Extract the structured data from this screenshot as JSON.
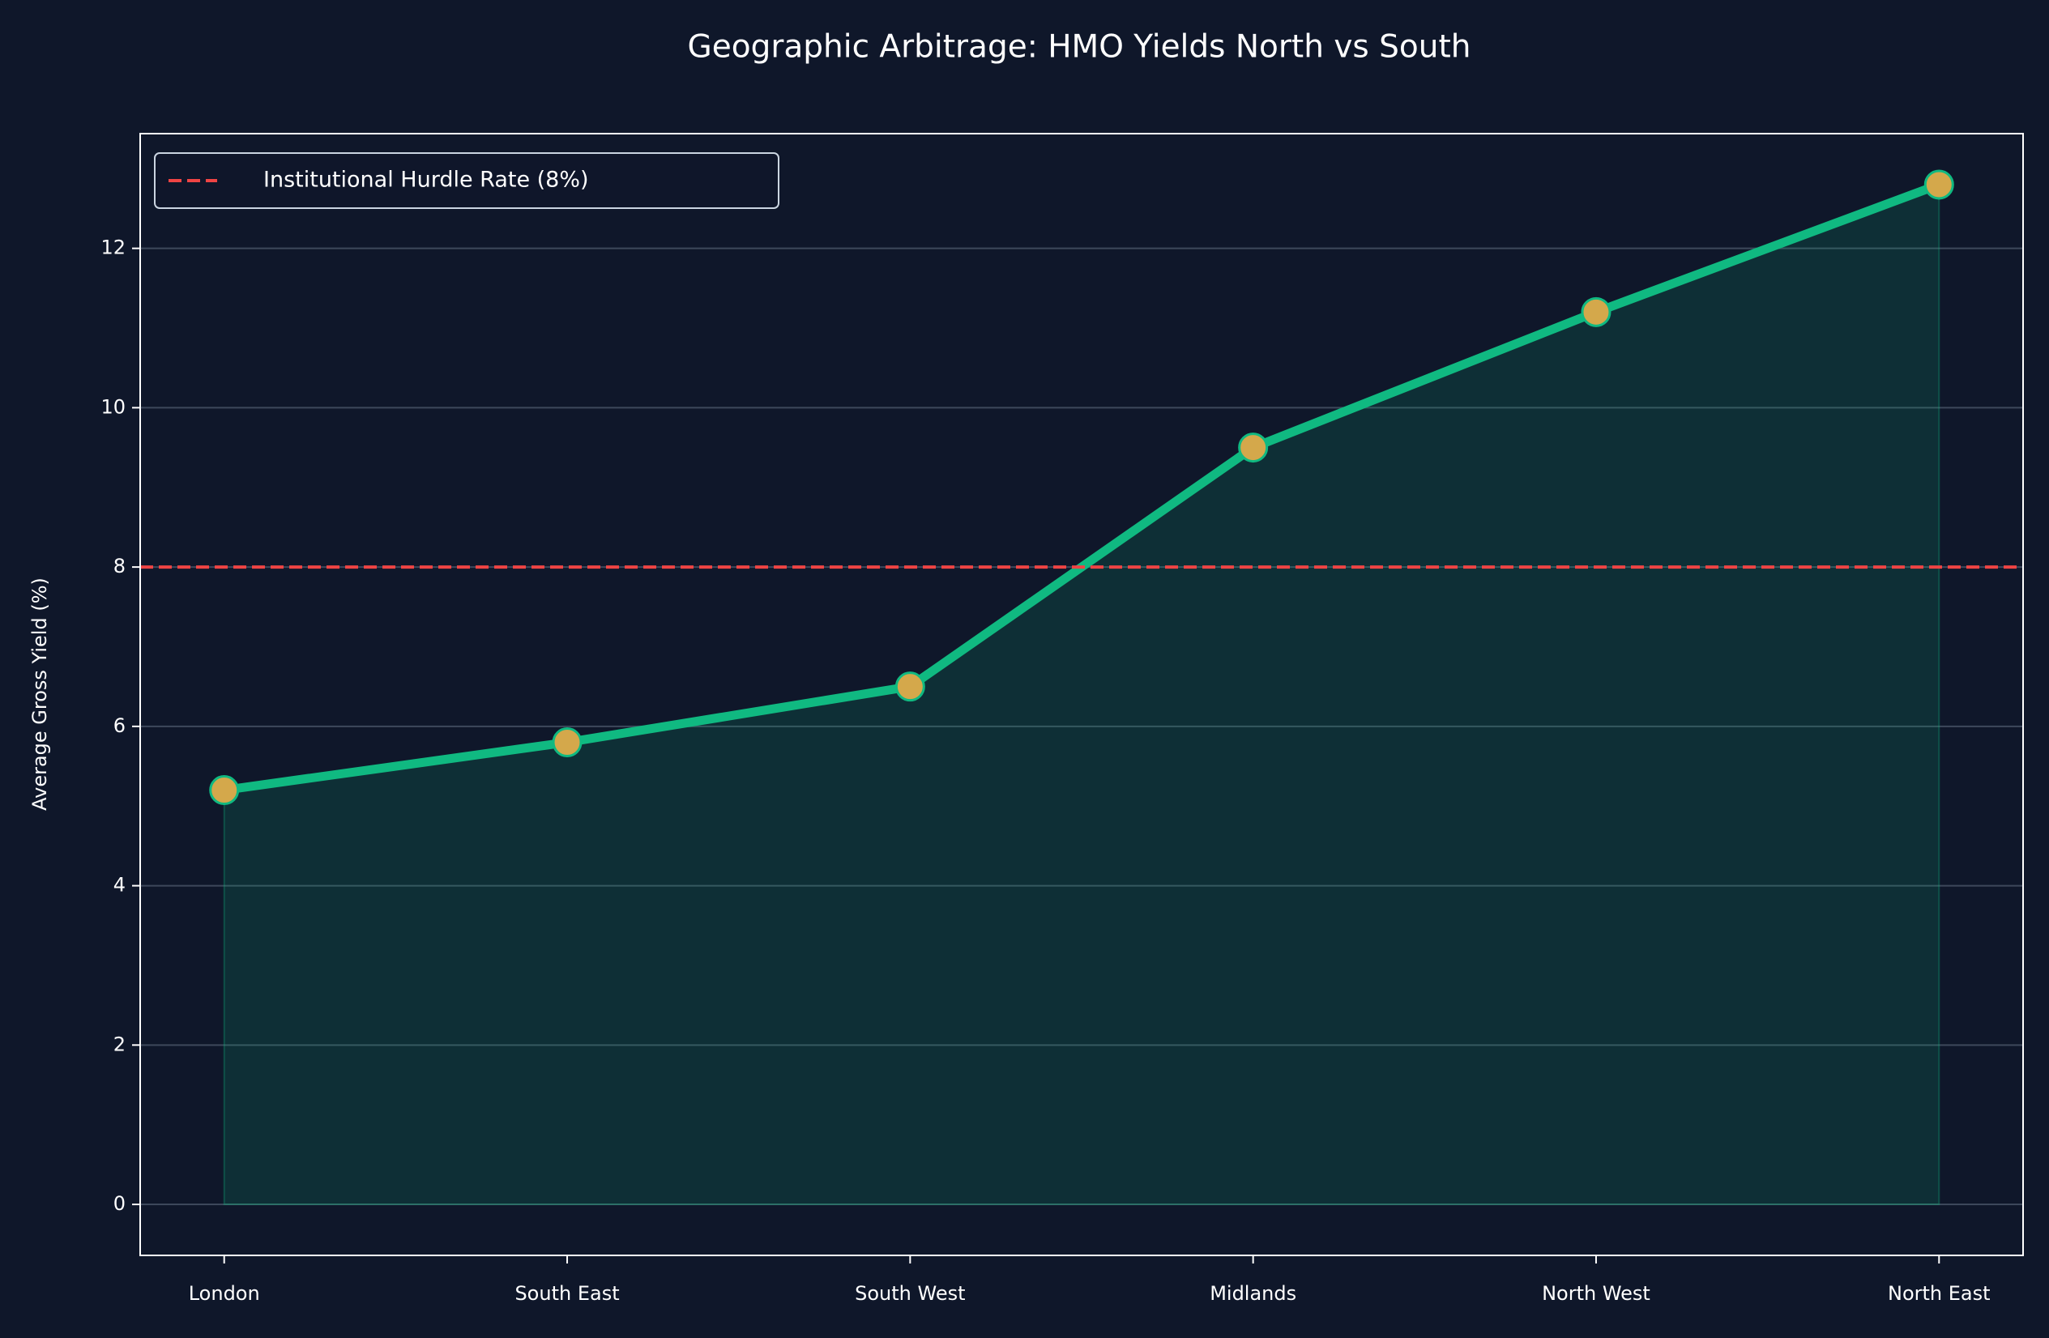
{
  "chart_data": {
    "type": "line",
    "title": "Geographic Arbitrage: HMO Yields North vs South",
    "y_label": "Average Gross Yield (%)",
    "categories": [
      "London",
      "South East",
      "South West",
      "Midlands",
      "North West",
      "North East"
    ],
    "series": [
      {
        "name": "Average Gross Yield",
        "color": "#10b981",
        "marker_color": "#d4a84b",
        "values": [
          5.2,
          5.8,
          6.5,
          9.5,
          11.2,
          12.8
        ]
      }
    ],
    "hurdle": {
      "value": 8,
      "label": "Institutional Hurdle Rate (8%)",
      "color": "#ef4444"
    },
    "ylim": [
      -0.64,
      13.44
    ],
    "yticks": [
      0,
      2,
      4,
      6,
      8,
      10,
      12
    ],
    "grid": true,
    "legend": "upper left"
  }
}
